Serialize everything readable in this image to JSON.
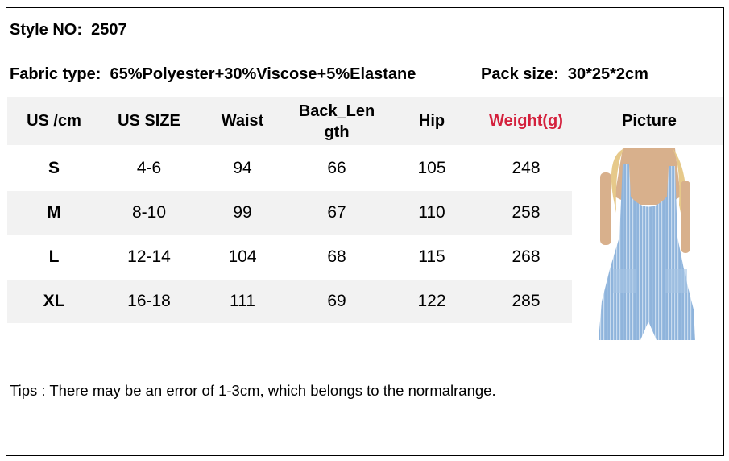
{
  "style": {
    "label": "Style NO:",
    "value": "2507"
  },
  "fabric": {
    "label": "Fabric type:",
    "value": "65%Polyester+30%Viscose+5%Elastane"
  },
  "pack": {
    "label": "Pack size:",
    "value": "30*25*2cm"
  },
  "table": {
    "headers": [
      "US /cm",
      "US SIZE",
      "Waist",
      "Back_Len gth",
      "Hip",
      "Weight(g)",
      "Picture"
    ],
    "rows": [
      [
        "S",
        "4-6",
        "94",
        "66",
        "105",
        "248"
      ],
      [
        "M",
        "8-10",
        "99",
        "67",
        "110",
        "258"
      ],
      [
        "L",
        "12-14",
        "104",
        "68",
        "115",
        "268"
      ],
      [
        "XL",
        "16-18",
        "111",
        "69",
        "122",
        "285"
      ]
    ]
  },
  "colors": {
    "weight_header": "#d4213d",
    "row_band": "#f2f2f2",
    "garment": "#8fb4dc"
  },
  "tips": "Tips : There may be an error of 1-3cm, which belongs to the normalrange."
}
